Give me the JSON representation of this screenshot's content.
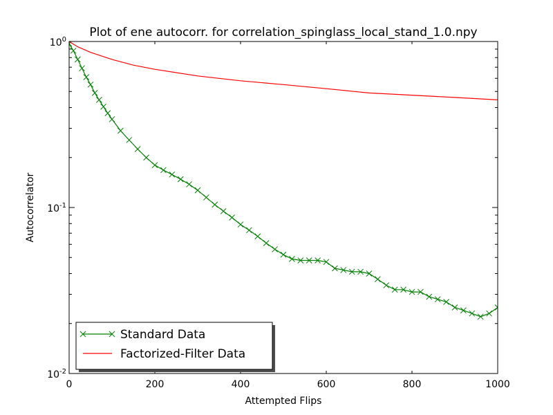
{
  "chart_data": {
    "type": "line",
    "title": "Plot of ene autocorr. for correlation_spinglass_local_stand_1.0.npy",
    "xlabel": "Attempted  Flips",
    "ylabel": "Autocorrelator",
    "xlim": [
      0,
      1000
    ],
    "ylim": [
      0.01,
      1
    ],
    "yscale": "log",
    "x_ticks": [
      0,
      200,
      400,
      600,
      800,
      1000
    ],
    "x_tick_labels": [
      "0",
      "200",
      "400",
      "600",
      "800",
      "1000"
    ],
    "y_ticks": [
      {
        "value": 1,
        "base": "10",
        "exp": "0"
      },
      {
        "value": 0.1,
        "base": "10",
        "exp": "-1"
      },
      {
        "value": 0.01,
        "base": "10",
        "exp": "-2"
      }
    ],
    "grid": false,
    "legend_position": "lower-left",
    "series": [
      {
        "name": "Standard Data",
        "color": "#008000",
        "marker": "x",
        "x": [
          0,
          10,
          20,
          30,
          40,
          50,
          60,
          70,
          80,
          90,
          100,
          120,
          140,
          160,
          180,
          200,
          220,
          240,
          260,
          280,
          300,
          320,
          340,
          360,
          380,
          400,
          420,
          440,
          460,
          480,
          500,
          520,
          540,
          560,
          580,
          600,
          620,
          640,
          660,
          680,
          700,
          720,
          740,
          760,
          780,
          800,
          820,
          840,
          860,
          880,
          900,
          920,
          940,
          960,
          980,
          1000
        ],
        "y": [
          0.97,
          0.88,
          0.78,
          0.69,
          0.61,
          0.55,
          0.49,
          0.445,
          0.405,
          0.37,
          0.34,
          0.29,
          0.255,
          0.225,
          0.2,
          0.18,
          0.168,
          0.158,
          0.148,
          0.138,
          0.127,
          0.115,
          0.104,
          0.095,
          0.087,
          0.079,
          0.073,
          0.067,
          0.061,
          0.056,
          0.052,
          0.049,
          0.048,
          0.048,
          0.048,
          0.047,
          0.043,
          0.042,
          0.041,
          0.041,
          0.04,
          0.037,
          0.034,
          0.032,
          0.032,
          0.031,
          0.031,
          0.029,
          0.028,
          0.027,
          0.025,
          0.024,
          0.023,
          0.022,
          0.023,
          0.025
        ]
      },
      {
        "name": "Factorized-Filter Data",
        "color": "#ff0000",
        "marker": "none",
        "x": [
          0,
          20,
          50,
          100,
          150,
          200,
          300,
          400,
          500,
          600,
          700,
          800,
          900,
          1000
        ],
        "y": [
          1.0,
          0.93,
          0.86,
          0.78,
          0.72,
          0.68,
          0.62,
          0.58,
          0.55,
          0.52,
          0.49,
          0.475,
          0.46,
          0.445
        ]
      }
    ]
  }
}
